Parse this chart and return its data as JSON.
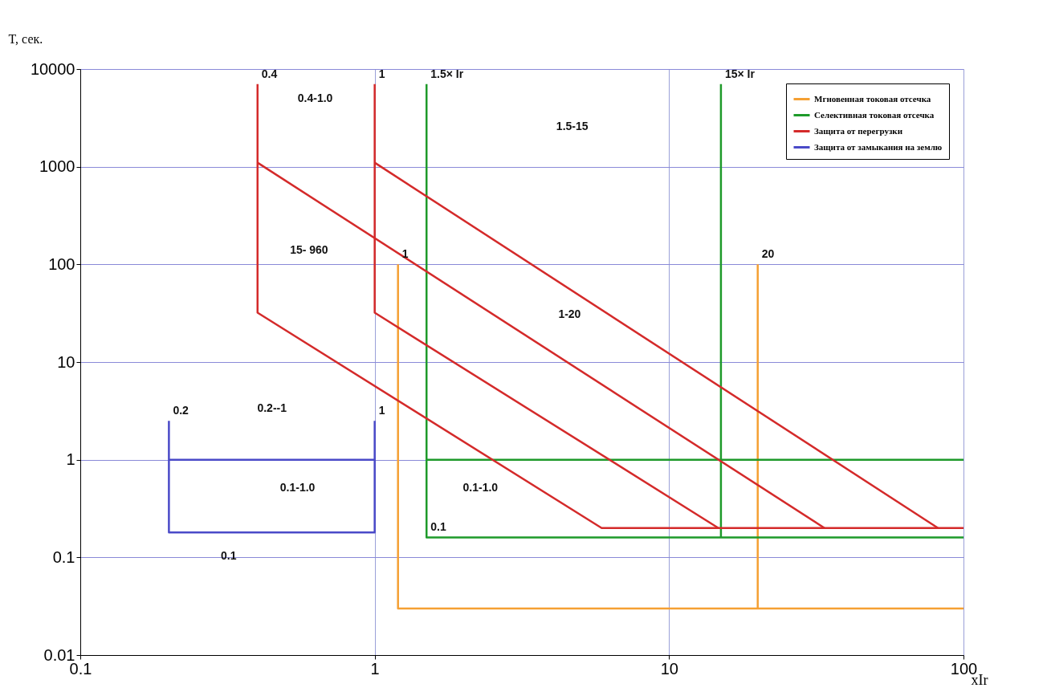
{
  "chart_data": {
    "type": "line",
    "xlabel": "xIr",
    "ylabel": "T, сек.",
    "log": "xy",
    "xlim": [
      0.1,
      100
    ],
    "xticks": [
      0.1,
      1,
      10,
      100
    ],
    "ylim": [
      0.01,
      10000
    ],
    "yticks": [
      0.01,
      0.1,
      1,
      10,
      100,
      1000,
      10000
    ],
    "grid": true,
    "legend": "top right",
    "line_style": "solid",
    "marker": "none",
    "series": [
      {
        "name": "Мгновенная токовая отсечка",
        "color": "#f5a033",
        "x": [
          1.2,
          1.2,
          100,
          null,
          20,
          20
        ],
        "values": [
          100,
          0.03,
          0.03,
          null,
          100,
          0.03
        ]
      },
      {
        "name": "Селективная токовая отсечка",
        "color": "#1e9a2a",
        "x": [
          1.5,
          1.5,
          100,
          null,
          15,
          15,
          null,
          1.5,
          100
        ],
        "values": [
          7000,
          0.16,
          0.16,
          null,
          7000,
          0.16,
          null,
          1,
          1
        ]
      },
      {
        "name": "Защита от перегрузки",
        "color": "#d42a2a",
        "x": [
          0.4,
          0.4,
          5.9,
          100,
          null,
          0.4,
          33.7,
          null,
          1,
          1,
          14.7,
          null,
          1,
          81.9
        ],
        "values": [
          7000,
          32,
          0.2,
          0.2,
          null,
          1100,
          0.2,
          null,
          7000,
          32,
          0.2,
          null,
          1100,
          0.2
        ]
      },
      {
        "name": "Защита от замыкания на землю",
        "color": "#4a4ac8",
        "x": [
          0.2,
          1,
          1,
          null,
          0.2,
          0.2,
          0.2,
          1,
          1
        ],
        "values": [
          1,
          1,
          2.5,
          null,
          2.5,
          1,
          0.18,
          0.18,
          1
        ]
      }
    ],
    "annotations": [
      {
        "text": "0.4",
        "x": 0.4,
        "y": 7000
      },
      {
        "text": "1",
        "x": 1,
        "y": 7000
      },
      {
        "text": "1.5× Ir",
        "x": 1.5,
        "y": 7000
      },
      {
        "text": "15× Ir",
        "x": 15,
        "y": 7000
      },
      "0.4-1.0",
      "1.5-15",
      "15- 960",
      {
        "text": "1",
        "x": 1.2,
        "y": 100
      },
      {
        "text": "20",
        "x": 20,
        "y": 100
      },
      "1-20",
      {
        "text": "0.2",
        "x": 0.2,
        "y": 2.5
      },
      "0.2--1",
      {
        "text": "1",
        "x": 1,
        "y": 2.5
      },
      "0.1-1.0",
      "0.1",
      "0.1-1.0",
      {
        "text": "0.1",
        "x": 1.5,
        "y": 0.16
      }
    ]
  }
}
